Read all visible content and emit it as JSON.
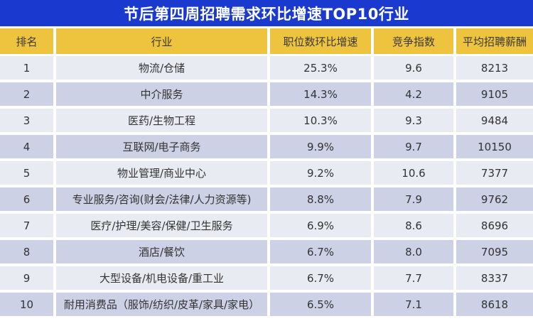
{
  "title": "节后第四周招聘需求环比增速TOP10行业",
  "colors": {
    "title_bar_bg": "#1a39ce",
    "title_text": "#ffffff",
    "header_bg": "#eec33d",
    "row_light_bg": "#e9ebf3",
    "row_dark_bg": "#ccd1e6",
    "cell_text": "#333333",
    "gutter": "#ffffff"
  },
  "table": {
    "headers": [
      "排名",
      "行业",
      "职位数环比增速",
      "竞争指数",
      "平均招聘薪酬"
    ],
    "rows": [
      {
        "rank": "1",
        "industry": "物流/仓储",
        "growth": "25.3%",
        "competition": "9.6",
        "salary": "8213"
      },
      {
        "rank": "2",
        "industry": "中介服务",
        "growth": "14.3%",
        "competition": "4.2",
        "salary": "9105"
      },
      {
        "rank": "3",
        "industry": "医药/生物工程",
        "growth": "10.3%",
        "competition": "9.3",
        "salary": "9484"
      },
      {
        "rank": "4",
        "industry": "互联网/电子商务",
        "growth": "9.9%",
        "competition": "9.7",
        "salary": "10150"
      },
      {
        "rank": "5",
        "industry": "物业管理/商业中心",
        "growth": "9.2%",
        "competition": "10.6",
        "salary": "7377"
      },
      {
        "rank": "6",
        "industry": "专业服务/咨询(财会/法律/人力资源等)",
        "growth": "8.8%",
        "competition": "7.9",
        "salary": "9762"
      },
      {
        "rank": "7",
        "industry": "医疗/护理/美容/保健/卫生服务",
        "growth": "6.9%",
        "competition": "8.6",
        "salary": "8696"
      },
      {
        "rank": "8",
        "industry": "酒店/餐饮",
        "growth": "6.7%",
        "competition": "8.0",
        "salary": "7095"
      },
      {
        "rank": "9",
        "industry": "大型设备/机电设备/重工业",
        "growth": "6.7%",
        "competition": "7.7",
        "salary": "8337"
      },
      {
        "rank": "10",
        "industry": "耐用消费品（服饰/纺织/皮革/家具/家电）",
        "growth": "6.5%",
        "competition": "7.1",
        "salary": "8618"
      }
    ]
  },
  "chart_data": {
    "type": "table",
    "title": "节后第四周招聘需求环比增速TOP10行业",
    "columns": [
      "排名",
      "行业",
      "职位数环比增速",
      "竞争指数",
      "平均招聘薪酬"
    ],
    "rows": [
      [
        "1",
        "物流/仓储",
        "25.3%",
        "9.6",
        "8213"
      ],
      [
        "2",
        "中介服务",
        "14.3%",
        "4.2",
        "9105"
      ],
      [
        "3",
        "医药/生物工程",
        "10.3%",
        "9.3",
        "9484"
      ],
      [
        "4",
        "互联网/电子商务",
        "9.9%",
        "9.7",
        "10150"
      ],
      [
        "5",
        "物业管理/商业中心",
        "9.2%",
        "10.6",
        "7377"
      ],
      [
        "6",
        "专业服务/咨询(财会/法律/人力资源等)",
        "8.8%",
        "7.9",
        "9762"
      ],
      [
        "7",
        "医疗/护理/美容/保健/卫生服务",
        "6.9%",
        "8.6",
        "8696"
      ],
      [
        "8",
        "酒店/餐饮",
        "6.7%",
        "8.0",
        "7095"
      ],
      [
        "9",
        "大型设备/机电设备/重工业",
        "6.7%",
        "7.7",
        "8337"
      ],
      [
        "10",
        "耐用消费品（服饰/纺织/皮革/家具/家电）",
        "6.5%",
        "7.1",
        "8618"
      ]
    ]
  }
}
